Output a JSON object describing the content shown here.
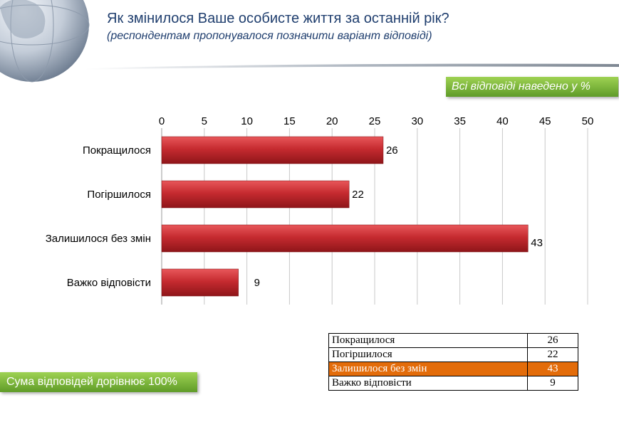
{
  "header": {
    "title": "Як змінилося Ваше особисте життя за останній рік?",
    "subtitle": "(респондентам пропонувалося позначити варіант відповіді)"
  },
  "note": "Всі відповіді наведено у %",
  "sum_note": "Сума відповідей дорівнює 100%",
  "colors": {
    "bar": "#c0282d",
    "accent_green": "#7ab83a",
    "highlight_row": "#e36c0a"
  },
  "chart_data": {
    "type": "bar",
    "orientation": "horizontal",
    "categories": [
      "Покращилося",
      "Погіршилося",
      "Залишилося без змін",
      "Важко відповісти"
    ],
    "values": [
      26,
      22,
      43,
      9
    ],
    "xlim": [
      0,
      50
    ],
    "xticks": [
      0,
      5,
      10,
      15,
      20,
      25,
      30,
      35,
      40,
      45,
      50
    ],
    "grid": true,
    "axis_position": "top"
  },
  "table": {
    "rows": [
      {
        "label": "Покращилося",
        "value": "26"
      },
      {
        "label": "Погіршилося",
        "value": "22"
      },
      {
        "label": "Залишилося без змін",
        "value": "43"
      },
      {
        "label": "Важко відповісти",
        "value": "9"
      }
    ],
    "highlight_index": 2
  }
}
